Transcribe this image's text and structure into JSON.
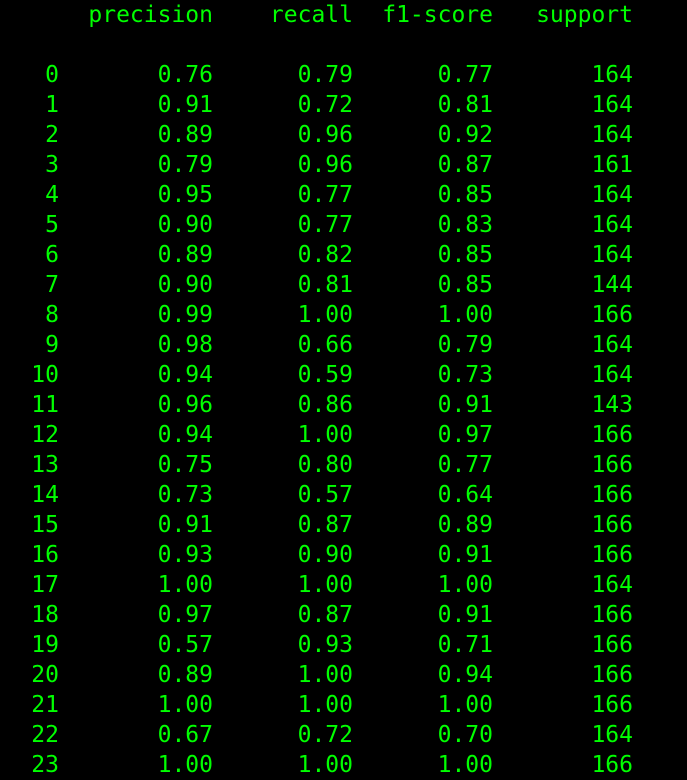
{
  "report": {
    "columns": [
      "precision",
      "recall",
      "f1-score",
      "support"
    ],
    "rows": [
      {
        "label": "0",
        "precision": "0.76",
        "recall": "0.79",
        "f1": "0.77",
        "support": "164"
      },
      {
        "label": "1",
        "precision": "0.91",
        "recall": "0.72",
        "f1": "0.81",
        "support": "164"
      },
      {
        "label": "2",
        "precision": "0.89",
        "recall": "0.96",
        "f1": "0.92",
        "support": "164"
      },
      {
        "label": "3",
        "precision": "0.79",
        "recall": "0.96",
        "f1": "0.87",
        "support": "161"
      },
      {
        "label": "4",
        "precision": "0.95",
        "recall": "0.77",
        "f1": "0.85",
        "support": "164"
      },
      {
        "label": "5",
        "precision": "0.90",
        "recall": "0.77",
        "f1": "0.83",
        "support": "164"
      },
      {
        "label": "6",
        "precision": "0.89",
        "recall": "0.82",
        "f1": "0.85",
        "support": "164"
      },
      {
        "label": "7",
        "precision": "0.90",
        "recall": "0.81",
        "f1": "0.85",
        "support": "144"
      },
      {
        "label": "8",
        "precision": "0.99",
        "recall": "1.00",
        "f1": "1.00",
        "support": "166"
      },
      {
        "label": "9",
        "precision": "0.98",
        "recall": "0.66",
        "f1": "0.79",
        "support": "164"
      },
      {
        "label": "10",
        "precision": "0.94",
        "recall": "0.59",
        "f1": "0.73",
        "support": "164"
      },
      {
        "label": "11",
        "precision": "0.96",
        "recall": "0.86",
        "f1": "0.91",
        "support": "143"
      },
      {
        "label": "12",
        "precision": "0.94",
        "recall": "1.00",
        "f1": "0.97",
        "support": "166"
      },
      {
        "label": "13",
        "precision": "0.75",
        "recall": "0.80",
        "f1": "0.77",
        "support": "166"
      },
      {
        "label": "14",
        "precision": "0.73",
        "recall": "0.57",
        "f1": "0.64",
        "support": "166"
      },
      {
        "label": "15",
        "precision": "0.91",
        "recall": "0.87",
        "f1": "0.89",
        "support": "166"
      },
      {
        "label": "16",
        "precision": "0.93",
        "recall": "0.90",
        "f1": "0.91",
        "support": "166"
      },
      {
        "label": "17",
        "precision": "1.00",
        "recall": "1.00",
        "f1": "1.00",
        "support": "164"
      },
      {
        "label": "18",
        "precision": "0.97",
        "recall": "0.87",
        "f1": "0.91",
        "support": "166"
      },
      {
        "label": "19",
        "precision": "0.57",
        "recall": "0.93",
        "f1": "0.71",
        "support": "166"
      },
      {
        "label": "20",
        "precision": "0.89",
        "recall": "1.00",
        "f1": "0.94",
        "support": "166"
      },
      {
        "label": "21",
        "precision": "1.00",
        "recall": "1.00",
        "f1": "1.00",
        "support": "166"
      },
      {
        "label": "22",
        "precision": "0.67",
        "recall": "0.72",
        "f1": "0.70",
        "support": "164"
      },
      {
        "label": "23",
        "precision": "1.00",
        "recall": "1.00",
        "f1": "1.00",
        "support": "166"
      }
    ]
  },
  "colors": {
    "background": "#000000",
    "text": "#00ff00"
  }
}
